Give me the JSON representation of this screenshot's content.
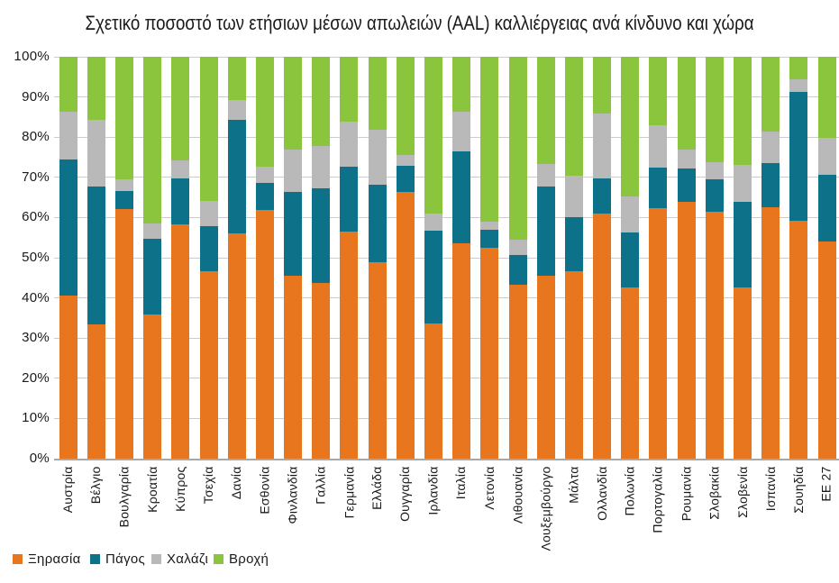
{
  "title": "Σχετικό ποσοστό των ετήσιων μέσων απωλειών (AAL) καλλιέργειας ανά κίνδυνο και χώρα",
  "chart_data": {
    "type": "bar",
    "stacked": true,
    "percent": true,
    "grid": true,
    "legend_position": "bottom-left",
    "ylim": [
      0,
      100
    ],
    "yticks": [
      "0%",
      "10%",
      "20%",
      "30%",
      "40%",
      "50%",
      "60%",
      "70%",
      "80%",
      "90%",
      "100%"
    ],
    "categories": [
      "Αυστρία",
      "Βέλγιο",
      "Βουλγαρία",
      "Κροατία",
      "Κύπρος",
      "Τσεχία",
      "Δανία",
      "Εσθονία",
      "Φινλανδία",
      "Γαλλία",
      "Γερμανία",
      "Ελλάδα",
      "Ουγγαρία",
      "Ιρλανδία",
      "Ιταλία",
      "Λετονία",
      "Λιθουανία",
      "Λουξεμβούργο",
      "Μάλτα",
      "Ολλανδία",
      "Πολωνία",
      "Πορτογαλία",
      "Ρουμανία",
      "Σλοβακία",
      "Σλοβενία",
      "Ισπανία",
      "Σουηδία",
      "ΕΕ 27"
    ],
    "series": [
      {
        "name": "Ξηρασία",
        "color": "#e8761f",
        "values": [
          40.5,
          33.3,
          62.0,
          35.8,
          58.2,
          46.7,
          56.0,
          61.9,
          45.6,
          43.7,
          56.4,
          48.9,
          66.4,
          33.7,
          53.6,
          52.4,
          43.3,
          45.6,
          46.6,
          61.0,
          42.7,
          62.3,
          63.8,
          61.5,
          42.5,
          62.6,
          59.3,
          54.1
        ]
      },
      {
        "name": "Πάγος",
        "color": "#0d7289",
        "values": [
          34.0,
          34.4,
          4.6,
          18.9,
          11.6,
          11.2,
          28.2,
          6.6,
          20.8,
          23.5,
          16.2,
          19.3,
          6.4,
          23.1,
          22.9,
          4.5,
          7.3,
          22.2,
          13.4,
          8.8,
          13.5,
          10.2,
          8.3,
          7.9,
          21.4,
          10.9,
          32.0,
          16.5
        ]
      },
      {
        "name": "Χαλάζι",
        "color": "#b9b9b9",
        "values": [
          11.8,
          16.7,
          2.9,
          3.8,
          4.4,
          6.2,
          5.0,
          4.2,
          10.4,
          10.5,
          11.2,
          13.7,
          2.8,
          4.1,
          9.9,
          2.1,
          3.9,
          5.6,
          10.3,
          16.1,
          9.1,
          10.4,
          4.9,
          4.4,
          9.2,
          8.0,
          3.0,
          9.2
        ]
      },
      {
        "name": "Βροχή",
        "color": "#8bc53e",
        "values": [
          13.7,
          15.6,
          30.5,
          41.5,
          25.8,
          35.9,
          10.8,
          27.3,
          23.2,
          22.3,
          16.2,
          18.1,
          24.4,
          39.1,
          13.6,
          41.0,
          45.5,
          26.6,
          29.7,
          14.1,
          34.7,
          17.1,
          23.0,
          26.2,
          26.9,
          18.5,
          5.7,
          20.2
        ]
      }
    ],
    "legend_x_positions": [
      14,
      100,
      168,
      237
    ]
  }
}
